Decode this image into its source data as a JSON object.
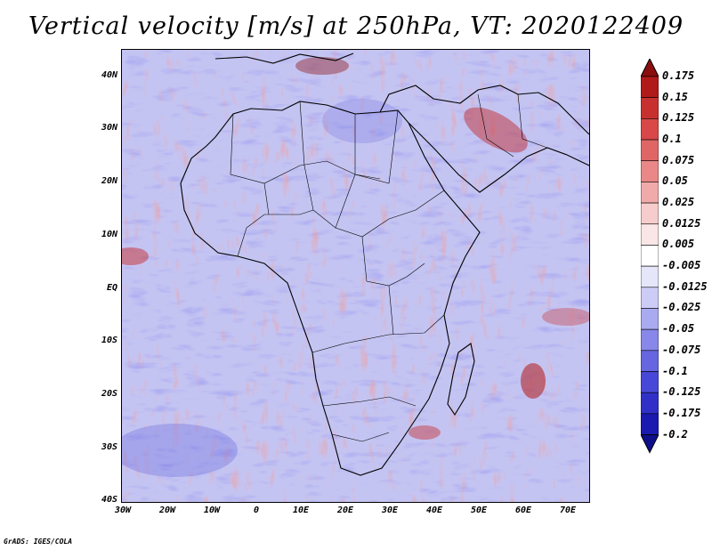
{
  "title": "Vertical velocity [m/s] at 250hPa, VT: 2020122409",
  "credit": "GrADS: IGES/COLA",
  "lat_labels": [
    "40N",
    "30N",
    "20N",
    "10N",
    "EQ",
    "10S",
    "20S",
    "30S",
    "40S"
  ],
  "lon_labels": [
    "30W",
    "20W",
    "10W",
    "0",
    "10E",
    "20E",
    "30E",
    "40E",
    "50E",
    "60E",
    "70E"
  ],
  "colorbar": {
    "labels": [
      "0.175",
      "0.15",
      "0.125",
      "0.1",
      "0.075",
      "0.05",
      "0.025",
      "0.0125",
      "0.005",
      "-0.005",
      "-0.0125",
      "-0.025",
      "-0.05",
      "-0.075",
      "-0.1",
      "-0.125",
      "-0.175",
      "-0.2"
    ],
    "colors": [
      "#8b0e0e",
      "#b01a1a",
      "#c83030",
      "#d84848",
      "#e06666",
      "#ea8888",
      "#f0aaaa",
      "#f6cccc",
      "#fae6e6",
      "#ffffff",
      "#e6e6fa",
      "#ccccf6",
      "#aaaaf0",
      "#8888ea",
      "#6666e0",
      "#4848d8",
      "#3030c8",
      "#1a1ab0",
      "#0e0e8b"
    ]
  }
}
